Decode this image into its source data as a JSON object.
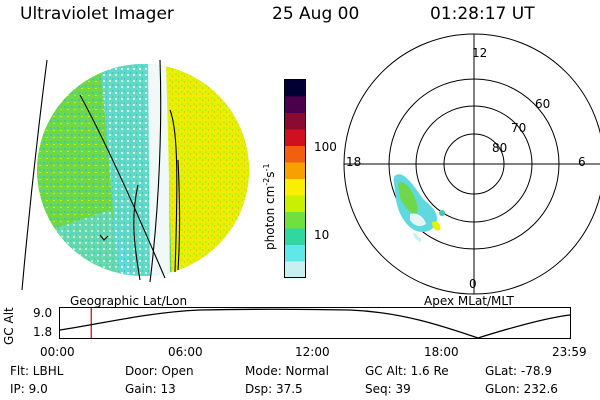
{
  "header": {
    "instrument": "Ultraviolet Imager",
    "date": "25 Aug 00",
    "time": "01:28:17 UT"
  },
  "colorbar": {
    "unit_main": "photon cm",
    "unit_exp1": "-2",
    "unit_s": "s",
    "unit_exp2": "-1",
    "tick_100": "100",
    "tick_10": "10",
    "colors": [
      "#000033",
      "#4b004b",
      "#8b0a30",
      "#d01020",
      "#f06010",
      "#f8a000",
      "#f8f000",
      "#c8f000",
      "#70e040",
      "#30d8a0",
      "#60e8e8",
      "#c8f0f0"
    ]
  },
  "labels": {
    "geo": "Geographic Lat/Lon",
    "apex": "Apex MLat/MLT"
  },
  "polar": {
    "mlt_12": "12",
    "mlt_18": "18",
    "mlt_6": "6",
    "mlt_0": "0",
    "lat_60": "60",
    "lat_70": "70",
    "lat_80": "80"
  },
  "altplot": {
    "ylabel": "GC Alt",
    "ytick_top": "9.0",
    "ytick_bottom": "1.8",
    "xticks": [
      "00:00",
      "06:00",
      "12:00",
      "18:00",
      "23:59"
    ],
    "marker_time_hours": 1.47
  },
  "info": {
    "flt": "Flt: LBHL",
    "ip": "IP:  9.0",
    "door": "Door: Open",
    "gain": "Gain: 13",
    "mode": "Mode: Normal",
    "dsp": "Dsp:    37.5",
    "gcalt": "GC Alt: 1.6 Re",
    "seq": "Seq: 39",
    "glat": "GLat: -78.9",
    "glon": "GLon: 232.6"
  }
}
